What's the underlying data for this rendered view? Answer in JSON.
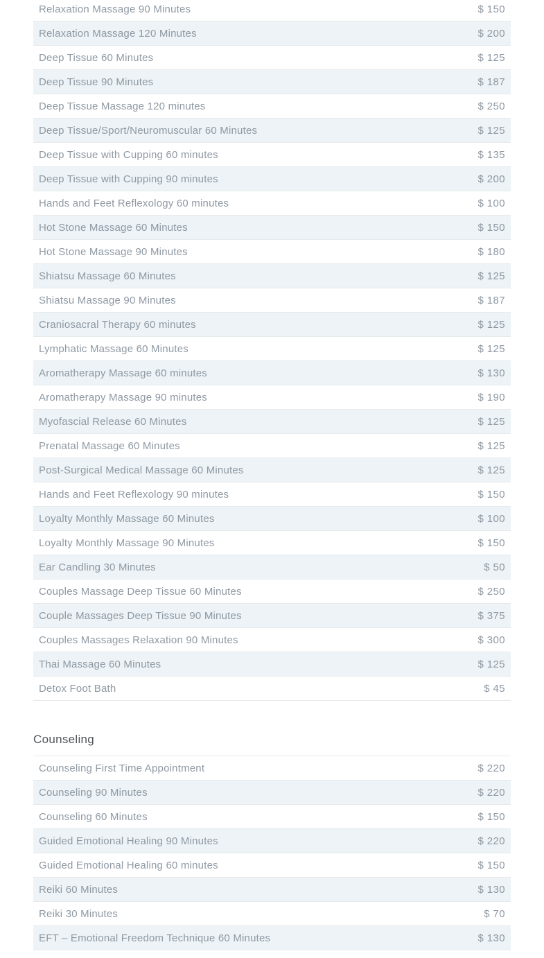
{
  "colors": {
    "background": "#ffffff",
    "row_alt_background": "#edf3f6",
    "row_border": "#e6eaec",
    "item_text": "#8f99a3",
    "heading_text": "#515459"
  },
  "sections": [
    {
      "heading": "",
      "items": [
        {
          "name": "Relaxation Massage 90 Minutes",
          "price": "$ 150"
        },
        {
          "name": "Relaxation Massage 120 Minutes",
          "price": "$ 200"
        },
        {
          "name": "Deep Tissue 60 Minutes",
          "price": "$ 125"
        },
        {
          "name": "Deep Tissue 90 Minutes",
          "price": "$ 187"
        },
        {
          "name": "Deep Tissue Massage 120 minutes",
          "price": "$ 250"
        },
        {
          "name": "Deep Tissue/Sport/Neuromuscular 60 Minutes",
          "price": "$ 125"
        },
        {
          "name": "Deep Tissue with Cupping 60 minutes",
          "price": "$ 135"
        },
        {
          "name": "Deep Tissue with Cupping 90 minutes",
          "price": "$ 200"
        },
        {
          "name": "Hands and Feet Reflexology 60 minutes",
          "price": "$ 100"
        },
        {
          "name": "Hot Stone Massage 60 Minutes",
          "price": "$ 150"
        },
        {
          "name": "Hot Stone Massage 90 Minutes",
          "price": "$ 180"
        },
        {
          "name": "Shiatsu Massage 60 Minutes",
          "price": "$ 125"
        },
        {
          "name": "Shiatsu Massage 90 Minutes",
          "price": "$ 187"
        },
        {
          "name": "Craniosacral Therapy 60 minutes",
          "price": "$ 125"
        },
        {
          "name": "Lymphatic Massage 60 Minutes",
          "price": "$ 125"
        },
        {
          "name": "Aromatherapy Massage 60 minutes",
          "price": "$ 130"
        },
        {
          "name": "Aromatherapy Massage 90 minutes",
          "price": "$ 190"
        },
        {
          "name": "Myofascial Release 60 Minutes",
          "price": "$ 125"
        },
        {
          "name": "Prenatal Massage 60 Minutes",
          "price": "$ 125"
        },
        {
          "name": "Post-Surgical Medical Massage 60 Minutes",
          "price": "$ 125"
        },
        {
          "name": "Hands and Feet Reflexology 90 minutes",
          "price": "$ 150"
        },
        {
          "name": "Loyalty Monthly Massage 60 Minutes",
          "price": "$ 100"
        },
        {
          "name": "Loyalty Monthly Massage 90 Minutes",
          "price": "$ 150"
        },
        {
          "name": "Ear Candling 30 Minutes",
          "price": "$ 50"
        },
        {
          "name": "Couples Massage Deep Tissue 60 Minutes",
          "price": "$ 250"
        },
        {
          "name": "Couple Massages Deep Tissue 90 Minutes",
          "price": "$ 375"
        },
        {
          "name": "Couples Massages Relaxation 90 Minutes",
          "price": "$ 300"
        },
        {
          "name": "Thai Massage 60 Minutes",
          "price": "$ 125"
        },
        {
          "name": "Detox Foot Bath",
          "price": "$ 45"
        }
      ]
    },
    {
      "heading": "Counseling",
      "items": [
        {
          "name": "Counseling First Time Appointment",
          "price": "$ 220"
        },
        {
          "name": "Counseling 90 Minutes",
          "price": "$ 220"
        },
        {
          "name": "Counseling 60 Minutes",
          "price": "$ 150"
        },
        {
          "name": "Guided Emotional Healing 90 Minutes",
          "price": "$ 220"
        },
        {
          "name": "Guided Emotional Healing 60 minutes",
          "price": "$ 150"
        },
        {
          "name": "Reiki 60 Minutes",
          "price": "$ 130"
        },
        {
          "name": "Reiki 30 Minutes",
          "price": "$ 70"
        },
        {
          "name": "EFT – Emotional Freedom Technique 60 Minutes",
          "price": "$ 130"
        }
      ],
      "truncated_row_visible": true
    }
  ]
}
